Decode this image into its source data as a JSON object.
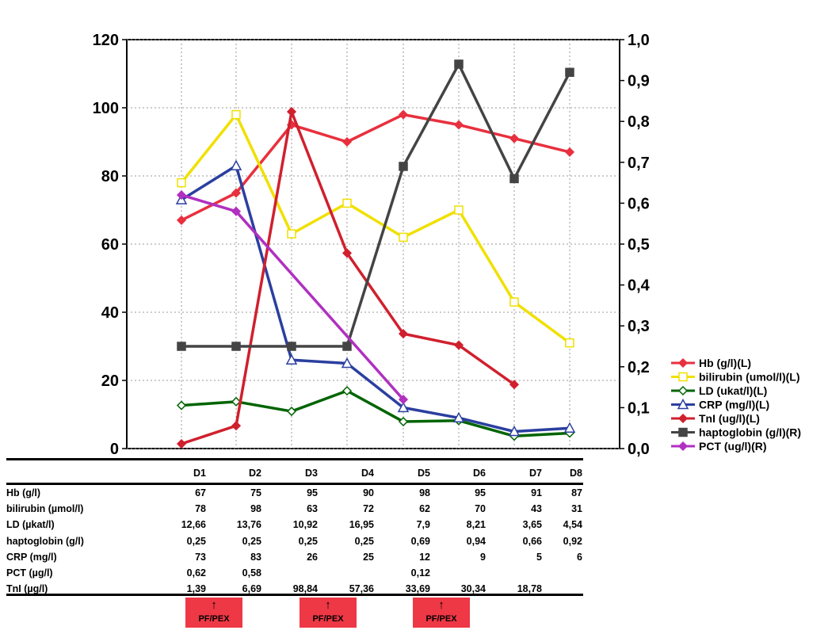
{
  "chart_data": {
    "type": "line",
    "categories": [
      "D1",
      "D2",
      "D3",
      "D4",
      "D5",
      "D6",
      "D7",
      "D8"
    ],
    "y_left": {
      "lim": [
        0,
        120
      ],
      "ticks": [
        "0",
        "20",
        "40",
        "60",
        "80",
        "100",
        "120"
      ]
    },
    "y_right": {
      "lim": [
        0,
        1.0
      ],
      "ticks": [
        "0,0",
        "0,1",
        "0,2",
        "0,3",
        "0,4",
        "0,5",
        "0,6",
        "0,7",
        "0,8",
        "0,9",
        "1,0"
      ]
    },
    "grid": true,
    "legend_position": "right",
    "series": [
      {
        "name": "Hb (g/l)(L)",
        "axis": "left",
        "color": "#e8303e",
        "marker": "diamond",
        "values": [
          67,
          75,
          95,
          90,
          98,
          95,
          91,
          87
        ]
      },
      {
        "name": "bilirubin (umol/l)(L)",
        "axis": "left",
        "color": "#f0e000",
        "marker": "square-open",
        "values": [
          78,
          98,
          63,
          72,
          62,
          70,
          43,
          31
        ]
      },
      {
        "name": "LD (ukat/l)(L)",
        "axis": "left",
        "color": "#006400",
        "marker": "diamond-open",
        "values": [
          12.66,
          13.76,
          10.92,
          16.95,
          7.9,
          8.21,
          3.65,
          4.54
        ]
      },
      {
        "name": "CRP (mg/l)(L)",
        "axis": "left",
        "color": "#2b3fa0",
        "marker": "triangle-open",
        "values": [
          73,
          83,
          26,
          25,
          12,
          9,
          5,
          6
        ]
      },
      {
        "name": "TnI (ug/l)(L)",
        "axis": "left",
        "color": "#d0202e",
        "marker": "diamond",
        "values": [
          1.39,
          6.69,
          98.84,
          57.36,
          33.69,
          30.34,
          18.78,
          null
        ]
      },
      {
        "name": "haptoglobin (g/l)(R)",
        "axis": "right",
        "color": "#444444",
        "marker": "square",
        "values": [
          0.25,
          0.25,
          0.25,
          0.25,
          0.69,
          0.94,
          0.66,
          0.92
        ]
      },
      {
        "name": "PCT (ug/l)(R)",
        "axis": "right",
        "color": "#b030c0",
        "marker": "diamond",
        "values": [
          0.62,
          0.58,
          null,
          null,
          0.12,
          null,
          null,
          null
        ]
      }
    ]
  },
  "table": {
    "headers": [
      "D1",
      "D2",
      "D3",
      "D4",
      "D5",
      "D6",
      "D7",
      "D8"
    ],
    "rows": [
      {
        "label": "Hb (g/l)",
        "values": [
          "67",
          "75",
          "95",
          "90",
          "98",
          "95",
          "91",
          "87"
        ]
      },
      {
        "label": "bilirubin (µmol/l)",
        "values": [
          "78",
          "98",
          "63",
          "72",
          "62",
          "70",
          "43",
          "31"
        ]
      },
      {
        "label": "LD (µkat/l)",
        "values": [
          "12,66",
          "13,76",
          "10,92",
          "16,95",
          "7,9",
          "8,21",
          "3,65",
          "4,54"
        ]
      },
      {
        "label": "haptoglobin (g/l)",
        "values": [
          "0,25",
          "0,25",
          "0,25",
          "0,25",
          "0,69",
          "0,94",
          "0,66",
          "0,92"
        ]
      },
      {
        "label": "CRP (mg/l)",
        "values": [
          "73",
          "83",
          "26",
          "25",
          "12",
          "9",
          "5",
          "6"
        ]
      },
      {
        "label": "PCT  (µg/l)",
        "values": [
          "0,62",
          "0,58",
          "",
          "",
          "0,12",
          "",
          "",
          ""
        ]
      },
      {
        "label": "TnI (µg/l)",
        "values": [
          "1,39",
          "6,69",
          "98,84",
          "57,36",
          "33,69",
          "30,34",
          "18,78",
          ""
        ]
      }
    ]
  },
  "procedures": [
    {
      "label": "PF/PEX",
      "arrow": "↑",
      "day": "D2"
    },
    {
      "label": "PF/PEX",
      "arrow": "↑",
      "day": "D4"
    },
    {
      "label": "PF/PEX",
      "arrow": "↑",
      "day": "D6"
    }
  ]
}
